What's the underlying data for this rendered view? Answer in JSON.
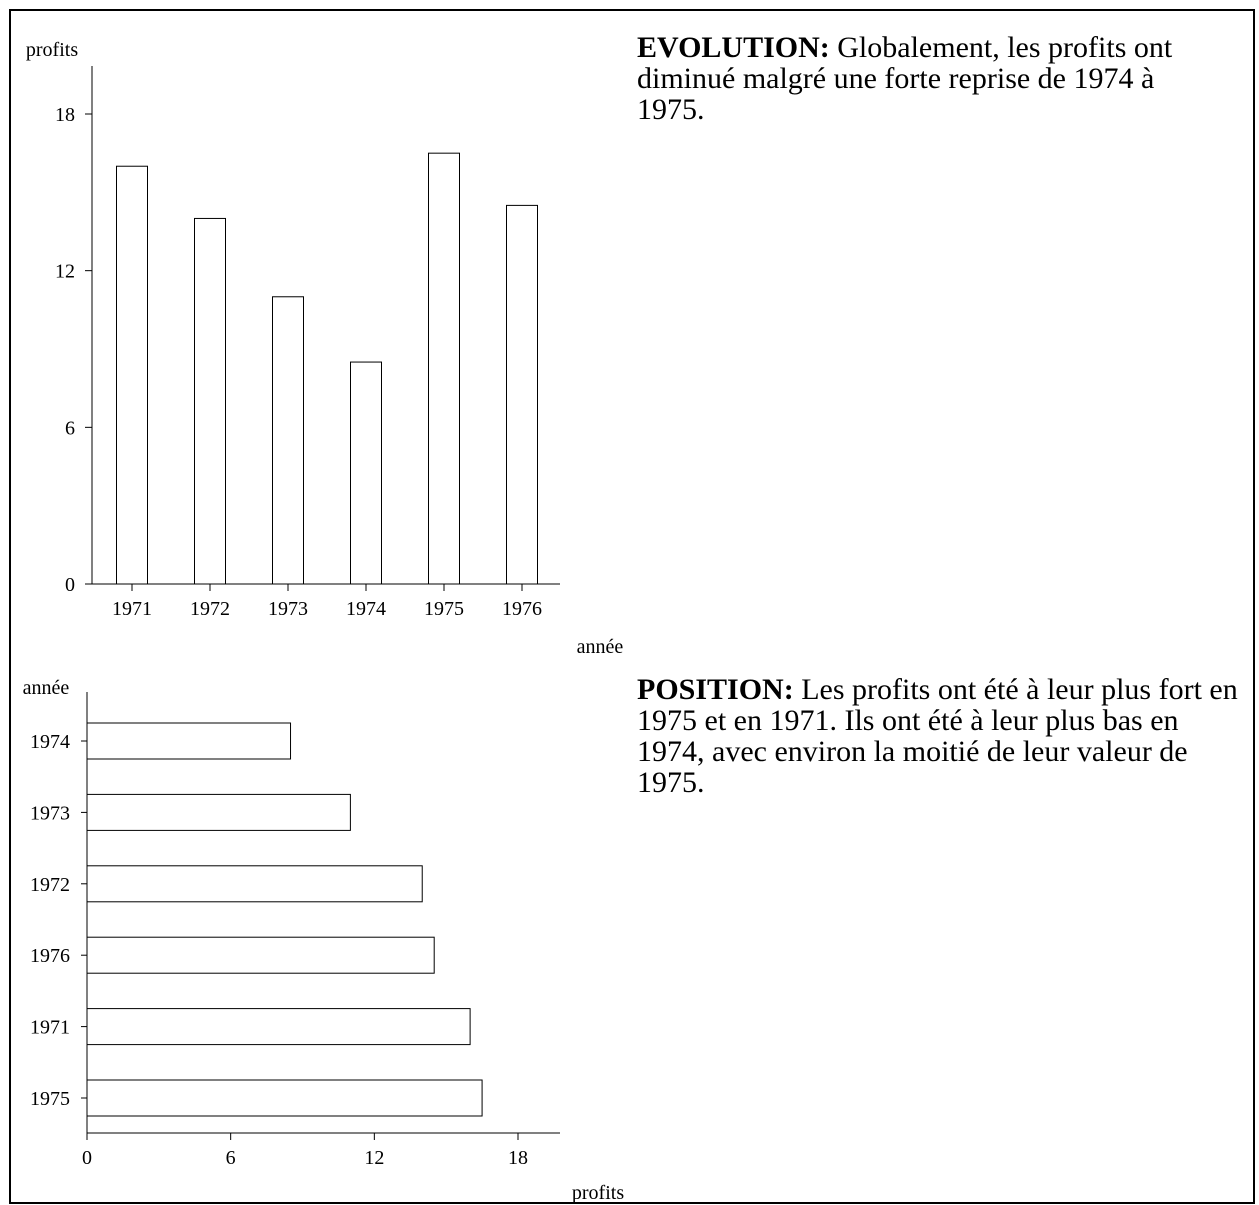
{
  "chart_data": [
    {
      "type": "bar",
      "orientation": "vertical",
      "categories": [
        "1971",
        "1972",
        "1973",
        "1974",
        "1975",
        "1976"
      ],
      "values": [
        16,
        14,
        11,
        8.5,
        16.5,
        14.5
      ],
      "title": "",
      "xlabel": "année",
      "ylabel": "profits",
      "ylim": [
        0,
        20
      ],
      "yticks": [
        "0",
        "6",
        "12",
        "18"
      ],
      "grid": false
    },
    {
      "type": "bar",
      "orientation": "horizontal",
      "categories": [
        "1974",
        "1973",
        "1972",
        "1976",
        "1971",
        "1975"
      ],
      "values": [
        8.5,
        11,
        14,
        14.5,
        16,
        16.5
      ],
      "title": "",
      "xlabel": "profits",
      "ylabel": "année",
      "xlim": [
        0,
        20
      ],
      "xticks": [
        "0",
        "6",
        "12",
        "18"
      ],
      "grid": false
    }
  ],
  "evolution": {
    "heading": "EVOLUTION:",
    "text": " Globalement, les profits ont diminué malgré une forte reprise de 1974 à 1975."
  },
  "position": {
    "heading": "POSITION:",
    "text": " Les profits ont été à leur plus fort en 1975 et en 1971. Ils ont été à leur plus bas en 1974, avec environ la moitié de leur valeur de 1975."
  },
  "colors": {
    "bar_fill": "#ffffff",
    "bar_stroke": "#000000",
    "axis": "#000000",
    "background": "#ffffff",
    "border": "#000000"
  }
}
